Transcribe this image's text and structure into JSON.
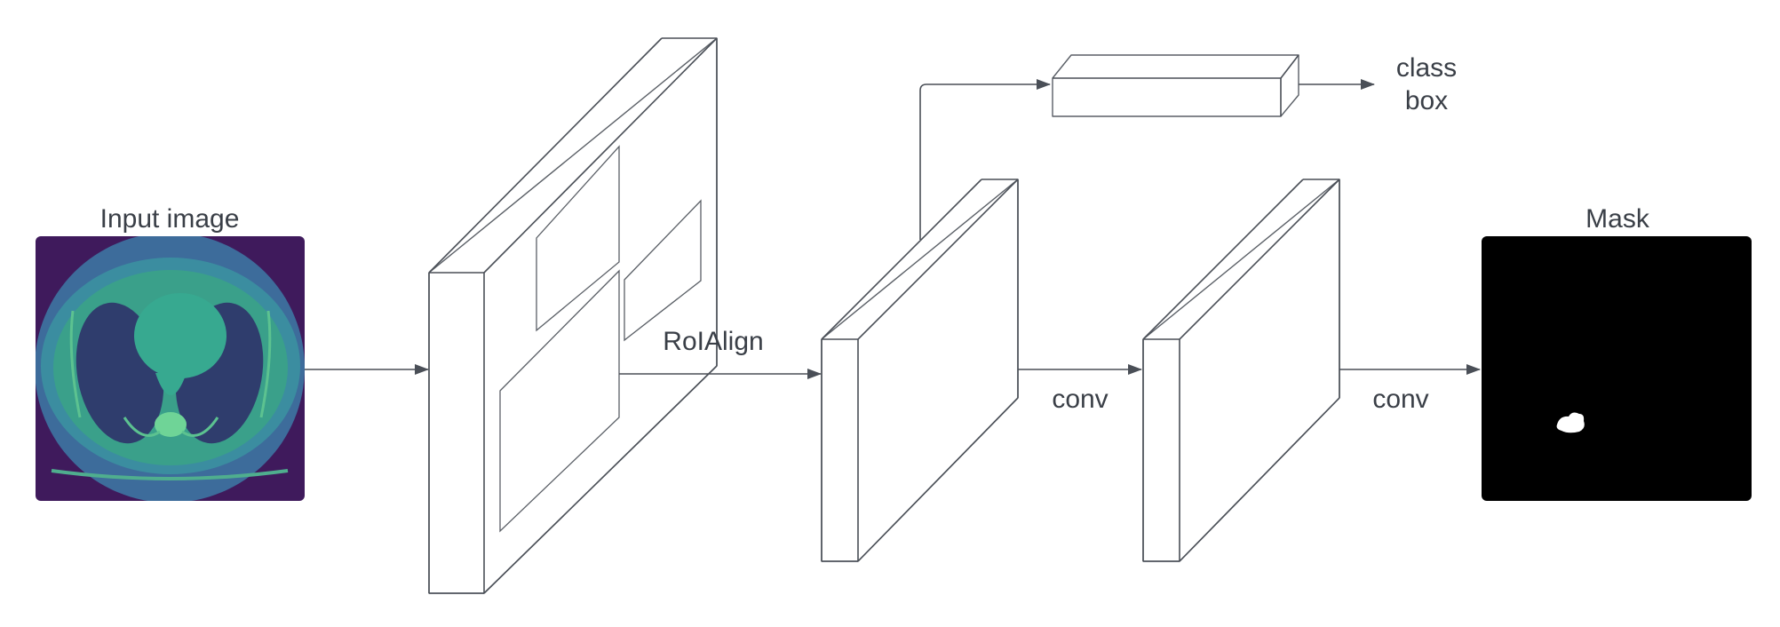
{
  "labels": {
    "input_image": "Input image",
    "roialign": "RoIAlign",
    "class": "class",
    "box": "box",
    "conv_1": "conv",
    "conv_2": "conv",
    "mask": "Mask"
  },
  "colors": {
    "stroke": "#4a4f57",
    "text": "#3a3f47",
    "ct_background": "#3f1a5c",
    "ct_body": "#3a6e9c",
    "ct_tissue": "#3aa08a",
    "mask_background": "#000000",
    "mask_region": "#ffffff"
  },
  "icons": {
    "arrowhead": "arrowhead-icon"
  }
}
